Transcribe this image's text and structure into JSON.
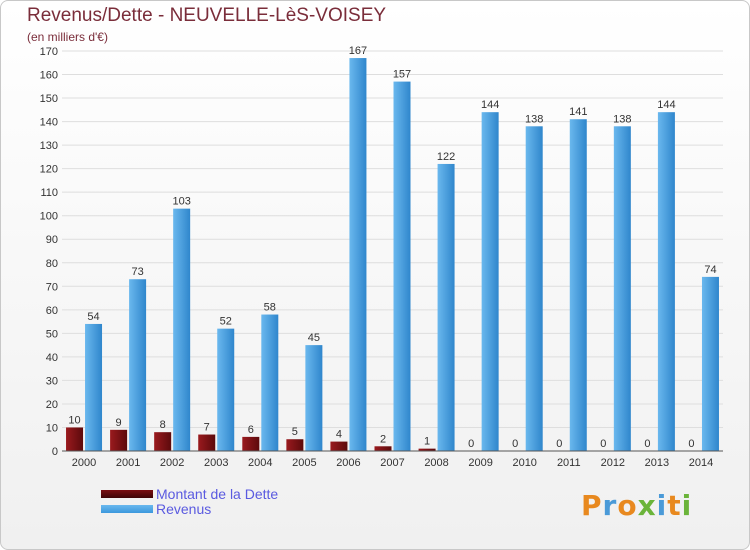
{
  "colors": {
    "dette": "#7a0e12",
    "revenus": "#3c98dd",
    "title": "#7a2d3a",
    "legend_text": "#5a5ae0"
  },
  "logo": {
    "text": "Proxiti",
    "colors": [
      "#e8891f",
      "#4a9ad8",
      "#e8891f",
      "#6bb43a",
      "#4a9ad8",
      "#e8891f",
      "#6bb43a"
    ]
  },
  "chart_data": {
    "type": "bar",
    "title": "Revenus/Dette - NEUVELLE-LèS-VOISEY",
    "subtitle": "(en milliers d'€)",
    "xlabel": "",
    "ylabel": "",
    "ylim": [
      0,
      170
    ],
    "yticks": [
      0,
      10,
      20,
      30,
      40,
      50,
      60,
      70,
      80,
      90,
      100,
      110,
      120,
      130,
      140,
      150,
      160,
      170
    ],
    "grid": true,
    "legend_position": "bottom-left",
    "categories": [
      "2000",
      "2001",
      "2002",
      "2003",
      "2004",
      "2005",
      "2006",
      "2007",
      "2008",
      "2009",
      "2010",
      "2011",
      "2012",
      "2013",
      "2014"
    ],
    "series": [
      {
        "name": "Montant de la Dette",
        "values": [
          10,
          9,
          8,
          7,
          6,
          5,
          4,
          2,
          1,
          0,
          0,
          0,
          0,
          0,
          0
        ]
      },
      {
        "name": "Revenus",
        "values": [
          54,
          73,
          103,
          52,
          58,
          45,
          167,
          157,
          122,
          144,
          138,
          141,
          138,
          144,
          74
        ]
      }
    ]
  }
}
